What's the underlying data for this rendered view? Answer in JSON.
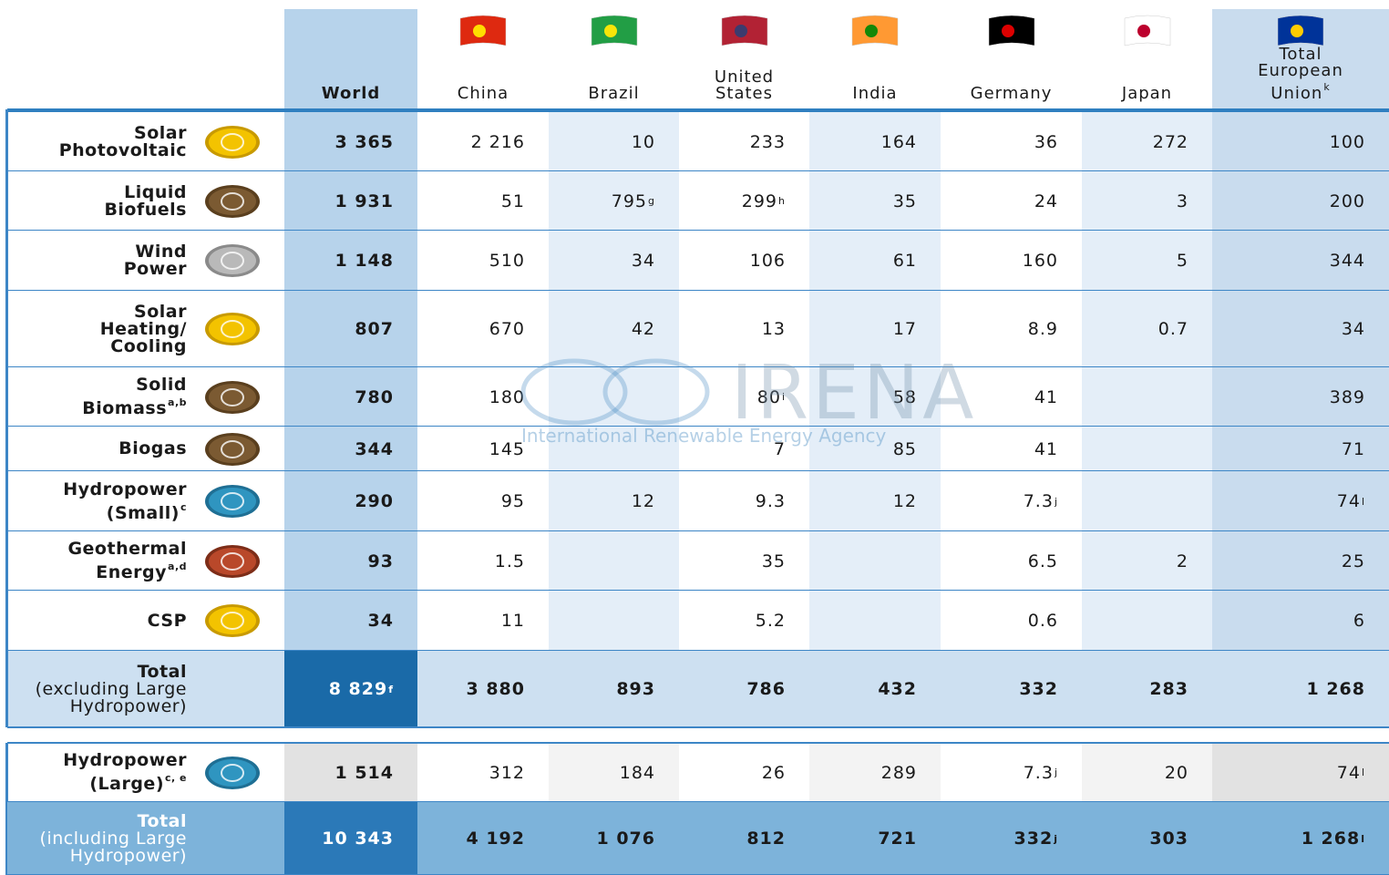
{
  "columns": [
    {
      "name": [
        "World"
      ]
    },
    {
      "name": [
        "China"
      ]
    },
    {
      "name": [
        "Brazil"
      ]
    },
    {
      "name": [
        "United",
        "States"
      ]
    },
    {
      "name": [
        "India"
      ]
    },
    {
      "name": [
        "Germany"
      ]
    },
    {
      "name": [
        "Japan"
      ]
    },
    {
      "name": [
        "Total",
        "European",
        "Union"
      ],
      "sup": "k"
    }
  ],
  "rows": [
    {
      "label": [
        "Solar",
        "Photovoltaic"
      ],
      "cells": [
        "3 365",
        "2 216",
        "10",
        "233",
        "164",
        "36",
        "272",
        "100"
      ]
    },
    {
      "label": [
        "Liquid",
        "Biofuels"
      ],
      "cells": [
        "1 931",
        "51",
        {
          "text": "795",
          "sup": "g"
        },
        {
          "text": "299",
          "sup": "h"
        },
        "35",
        "24",
        "3",
        "200"
      ]
    },
    {
      "label": [
        "Wind",
        "Power"
      ],
      "cells": [
        "1 148",
        "510",
        "34",
        "106",
        "61",
        "160",
        "5",
        "344"
      ]
    },
    {
      "label": [
        "Solar",
        "Heating/",
        "Cooling"
      ],
      "cells": [
        "807",
        "670",
        "42",
        "13",
        "17",
        "8.9",
        "0.7",
        "34"
      ]
    },
    {
      "label": [
        "Solid",
        "Biomass"
      ],
      "label_sup": "a,b",
      "cells": [
        "780",
        "180",
        null,
        {
          "text": "80",
          "sup": "i"
        },
        "58",
        "41",
        null,
        "389"
      ]
    },
    {
      "label": [
        "Biogas"
      ],
      "cells": [
        "344",
        "145",
        null,
        "7",
        "85",
        "41",
        null,
        "71"
      ]
    },
    {
      "label": [
        "Hydropower",
        "(Small)"
      ],
      "label_sup": "c",
      "cells": [
        "290",
        "95",
        "12",
        "9.3",
        "12",
        {
          "text": "7.3",
          "sup": "j"
        },
        null,
        {
          "text": "74",
          "sup": "l"
        }
      ]
    },
    {
      "label": [
        "Geothermal",
        "Energy"
      ],
      "label_sup": "a,d",
      "cells": [
        "93",
        "1.5",
        null,
        "35",
        null,
        "6.5",
        "2",
        "25"
      ]
    },
    {
      "label": [
        "CSP"
      ],
      "cells": [
        "34",
        "11",
        null,
        "5.2",
        null,
        "0.6",
        null,
        "6"
      ]
    }
  ],
  "total_excluding": {
    "label": [
      "Total"
    ],
    "note": [
      "(excluding Large",
      "Hydropower)"
    ],
    "cells": [
      {
        "text": "8 829",
        "sup": "f"
      },
      "3 880",
      "893",
      "786",
      "432",
      "332",
      "283",
      "1 268"
    ]
  },
  "large_hydro": {
    "label": [
      "Hydropower",
      "(Large)"
    ],
    "label_sup": "c, e",
    "cells": [
      "1 514",
      "312",
      "184",
      "26",
      "289",
      {
        "text": "7.3",
        "sup": "j"
      },
      "20",
      {
        "text": "74",
        "sup": "l"
      }
    ]
  },
  "total_including": {
    "label": [
      "Total"
    ],
    "note": [
      "(including Large",
      "Hydropower)"
    ],
    "cells": [
      "10 343",
      "4 192",
      "1 076",
      "812",
      "721",
      {
        "text": "332",
        "sup": "j"
      },
      "303",
      {
        "text": "1 268",
        "sup": "l"
      }
    ]
  },
  "watermark": {
    "title": "IRENA",
    "subtitle": "International Renewable Energy Agency"
  }
}
